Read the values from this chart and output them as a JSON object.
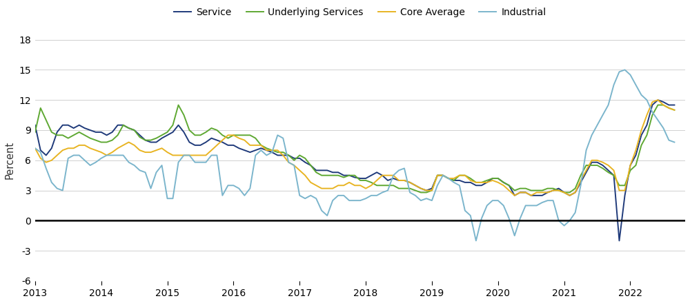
{
  "ylabel": "Percent",
  "xlim": [
    2013.0,
    2022.83
  ],
  "ylim": [
    -6,
    18
  ],
  "yticks": [
    -6,
    -3,
    0,
    3,
    6,
    9,
    12,
    15,
    18
  ],
  "xticks": [
    2013,
    2014,
    2015,
    2016,
    2017,
    2018,
    2019,
    2020,
    2021,
    2022
  ],
  "colors": {
    "Service": "#1f3a7a",
    "Underlying Services": "#5ea832",
    "Core Average": "#e8b422",
    "Industrial": "#7bb5cc"
  },
  "legend_order": [
    "Service",
    "Underlying Services",
    "Core Average",
    "Industrial"
  ],
  "series": {
    "Service": {
      "x": [
        2013.0,
        2013.083,
        2013.167,
        2013.25,
        2013.333,
        2013.417,
        2013.5,
        2013.583,
        2013.667,
        2013.75,
        2013.833,
        2013.917,
        2014.0,
        2014.083,
        2014.167,
        2014.25,
        2014.333,
        2014.417,
        2014.5,
        2014.583,
        2014.667,
        2014.75,
        2014.833,
        2014.917,
        2015.0,
        2015.083,
        2015.167,
        2015.25,
        2015.333,
        2015.417,
        2015.5,
        2015.583,
        2015.667,
        2015.75,
        2015.833,
        2015.917,
        2016.0,
        2016.083,
        2016.167,
        2016.25,
        2016.333,
        2016.417,
        2016.5,
        2016.583,
        2016.667,
        2016.75,
        2016.833,
        2016.917,
        2017.0,
        2017.083,
        2017.167,
        2017.25,
        2017.333,
        2017.417,
        2017.5,
        2017.583,
        2017.667,
        2017.75,
        2017.833,
        2017.917,
        2018.0,
        2018.083,
        2018.167,
        2018.25,
        2018.333,
        2018.417,
        2018.5,
        2018.583,
        2018.667,
        2018.75,
        2018.833,
        2018.917,
        2019.0,
        2019.083,
        2019.167,
        2019.25,
        2019.333,
        2019.417,
        2019.5,
        2019.583,
        2019.667,
        2019.75,
        2019.833,
        2019.917,
        2020.0,
        2020.083,
        2020.167,
        2020.25,
        2020.333,
        2020.417,
        2020.5,
        2020.583,
        2020.667,
        2020.75,
        2020.833,
        2020.917,
        2021.0,
        2021.083,
        2021.167,
        2021.25,
        2021.333,
        2021.417,
        2021.5,
        2021.583,
        2021.667,
        2021.75,
        2021.833,
        2021.917,
        2022.0,
        2022.083,
        2022.167,
        2022.25,
        2022.333,
        2022.417,
        2022.5,
        2022.583,
        2022.667
      ],
      "y": [
        9.5,
        7.0,
        6.5,
        7.2,
        8.8,
        9.5,
        9.5,
        9.2,
        9.5,
        9.2,
        9.0,
        8.8,
        8.8,
        8.5,
        8.8,
        9.5,
        9.5,
        9.2,
        9.0,
        8.5,
        8.0,
        7.8,
        7.8,
        8.2,
        8.5,
        8.8,
        9.5,
        8.8,
        7.8,
        7.5,
        7.5,
        7.8,
        8.2,
        8.0,
        7.8,
        7.5,
        7.5,
        7.2,
        7.0,
        6.8,
        7.0,
        7.2,
        7.0,
        6.8,
        6.5,
        6.5,
        6.5,
        6.2,
        6.2,
        5.8,
        5.5,
        5.0,
        5.0,
        5.0,
        4.8,
        4.8,
        4.5,
        4.5,
        4.3,
        4.2,
        4.2,
        4.5,
        4.8,
        4.5,
        4.0,
        4.2,
        4.0,
        4.0,
        3.8,
        3.5,
        3.2,
        3.0,
        3.2,
        4.5,
        4.5,
        4.2,
        4.0,
        4.0,
        3.8,
        3.8,
        3.5,
        3.5,
        3.8,
        4.2,
        4.2,
        3.8,
        3.5,
        2.5,
        2.8,
        2.8,
        2.5,
        2.5,
        2.5,
        2.8,
        3.0,
        3.2,
        2.8,
        2.5,
        2.8,
        3.8,
        4.8,
        5.8,
        5.8,
        5.5,
        5.0,
        4.5,
        -2.0,
        2.5,
        5.5,
        6.5,
        8.5,
        9.5,
        11.5,
        12.0,
        11.8,
        11.5,
        11.5
      ]
    },
    "Underlying Services": {
      "x": [
        2013.0,
        2013.083,
        2013.167,
        2013.25,
        2013.333,
        2013.417,
        2013.5,
        2013.583,
        2013.667,
        2013.75,
        2013.833,
        2013.917,
        2014.0,
        2014.083,
        2014.167,
        2014.25,
        2014.333,
        2014.417,
        2014.5,
        2014.583,
        2014.667,
        2014.75,
        2014.833,
        2014.917,
        2015.0,
        2015.083,
        2015.167,
        2015.25,
        2015.333,
        2015.417,
        2015.5,
        2015.583,
        2015.667,
        2015.75,
        2015.833,
        2015.917,
        2016.0,
        2016.083,
        2016.167,
        2016.25,
        2016.333,
        2016.417,
        2016.5,
        2016.583,
        2016.667,
        2016.75,
        2016.833,
        2016.917,
        2017.0,
        2017.083,
        2017.167,
        2017.25,
        2017.333,
        2017.417,
        2017.5,
        2017.583,
        2017.667,
        2017.75,
        2017.833,
        2017.917,
        2018.0,
        2018.083,
        2018.167,
        2018.25,
        2018.333,
        2018.417,
        2018.5,
        2018.583,
        2018.667,
        2018.75,
        2018.833,
        2018.917,
        2019.0,
        2019.083,
        2019.167,
        2019.25,
        2019.333,
        2019.417,
        2019.5,
        2019.583,
        2019.667,
        2019.75,
        2019.833,
        2019.917,
        2020.0,
        2020.083,
        2020.167,
        2020.25,
        2020.333,
        2020.417,
        2020.5,
        2020.583,
        2020.667,
        2020.75,
        2020.833,
        2020.917,
        2021.0,
        2021.083,
        2021.167,
        2021.25,
        2021.333,
        2021.417,
        2021.5,
        2021.583,
        2021.667,
        2021.75,
        2021.833,
        2021.917,
        2022.0,
        2022.083,
        2022.167,
        2022.25,
        2022.333,
        2022.417,
        2022.5,
        2022.583,
        2022.667
      ],
      "y": [
        8.8,
        11.2,
        10.0,
        8.8,
        8.5,
        8.5,
        8.2,
        8.5,
        8.8,
        8.5,
        8.2,
        8.0,
        7.8,
        7.8,
        8.0,
        8.5,
        9.5,
        9.2,
        9.0,
        8.3,
        8.0,
        8.0,
        8.2,
        8.5,
        8.8,
        9.5,
        11.5,
        10.5,
        9.0,
        8.5,
        8.5,
        8.8,
        9.2,
        9.0,
        8.5,
        8.2,
        8.5,
        8.5,
        8.5,
        8.5,
        8.2,
        7.5,
        7.2,
        7.0,
        6.8,
        6.8,
        6.5,
        6.0,
        6.5,
        6.2,
        5.5,
        4.8,
        4.5,
        4.5,
        4.5,
        4.5,
        4.3,
        4.5,
        4.5,
        4.0,
        4.0,
        3.8,
        3.5,
        3.5,
        3.5,
        3.5,
        3.2,
        3.2,
        3.2,
        3.0,
        2.8,
        2.8,
        3.0,
        4.5,
        4.5,
        4.2,
        4.0,
        4.5,
        4.5,
        4.2,
        3.8,
        3.8,
        4.0,
        4.2,
        4.2,
        3.8,
        3.5,
        3.0,
        3.2,
        3.2,
        3.0,
        3.0,
        3.0,
        3.2,
        3.2,
        3.0,
        2.8,
        2.8,
        3.2,
        4.5,
        5.5,
        5.5,
        5.5,
        5.2,
        4.8,
        4.5,
        3.5,
        3.5,
        5.0,
        5.5,
        7.5,
        8.5,
        10.5,
        11.5,
        11.5,
        11.2,
        11.0
      ]
    },
    "Core Average": {
      "x": [
        2013.0,
        2013.083,
        2013.167,
        2013.25,
        2013.333,
        2013.417,
        2013.5,
        2013.583,
        2013.667,
        2013.75,
        2013.833,
        2013.917,
        2014.0,
        2014.083,
        2014.167,
        2014.25,
        2014.333,
        2014.417,
        2014.5,
        2014.583,
        2014.667,
        2014.75,
        2014.833,
        2014.917,
        2015.0,
        2015.083,
        2015.167,
        2015.25,
        2015.333,
        2015.417,
        2015.5,
        2015.583,
        2015.667,
        2015.75,
        2015.833,
        2015.917,
        2016.0,
        2016.083,
        2016.167,
        2016.25,
        2016.333,
        2016.417,
        2016.5,
        2016.583,
        2016.667,
        2016.75,
        2016.833,
        2016.917,
        2017.0,
        2017.083,
        2017.167,
        2017.25,
        2017.333,
        2017.417,
        2017.5,
        2017.583,
        2017.667,
        2017.75,
        2017.833,
        2017.917,
        2018.0,
        2018.083,
        2018.167,
        2018.25,
        2018.333,
        2018.417,
        2018.5,
        2018.583,
        2018.667,
        2018.75,
        2018.833,
        2018.917,
        2019.0,
        2019.083,
        2019.167,
        2019.25,
        2019.333,
        2019.417,
        2019.5,
        2019.583,
        2019.667,
        2019.75,
        2019.833,
        2019.917,
        2020.0,
        2020.083,
        2020.167,
        2020.25,
        2020.333,
        2020.417,
        2020.5,
        2020.583,
        2020.667,
        2020.75,
        2020.833,
        2020.917,
        2021.0,
        2021.083,
        2021.167,
        2021.25,
        2021.333,
        2021.417,
        2021.5,
        2021.583,
        2021.667,
        2021.75,
        2021.833,
        2021.917,
        2022.0,
        2022.083,
        2022.167,
        2022.25,
        2022.333,
        2022.417,
        2022.5,
        2022.583,
        2022.667
      ],
      "y": [
        7.2,
        6.2,
        5.8,
        6.0,
        6.5,
        7.0,
        7.2,
        7.2,
        7.5,
        7.5,
        7.2,
        7.0,
        6.8,
        6.5,
        6.8,
        7.2,
        7.5,
        7.8,
        7.5,
        7.0,
        6.8,
        6.8,
        7.0,
        7.2,
        6.8,
        6.5,
        6.5,
        6.5,
        6.5,
        6.5,
        6.5,
        6.5,
        7.0,
        7.5,
        8.0,
        8.5,
        8.5,
        8.2,
        8.0,
        7.5,
        7.5,
        7.5,
        7.0,
        7.0,
        7.0,
        6.5,
        5.8,
        5.5,
        5.0,
        4.5,
        3.8,
        3.5,
        3.2,
        3.2,
        3.2,
        3.5,
        3.5,
        3.8,
        3.5,
        3.5,
        3.2,
        3.5,
        4.0,
        4.5,
        4.5,
        4.5,
        4.0,
        4.0,
        3.8,
        3.5,
        3.2,
        3.0,
        3.0,
        4.5,
        4.5,
        4.2,
        4.2,
        4.5,
        4.5,
        4.0,
        3.8,
        3.8,
        3.8,
        4.0,
        3.8,
        3.5,
        3.0,
        2.5,
        2.8,
        2.8,
        2.5,
        2.8,
        2.8,
        2.8,
        3.0,
        3.0,
        2.8,
        2.5,
        2.8,
        4.0,
        5.0,
        6.0,
        6.0,
        5.8,
        5.5,
        5.0,
        3.0,
        3.0,
        5.5,
        7.0,
        9.0,
        10.5,
        11.8,
        12.0,
        11.5,
        11.2,
        11.0
      ]
    },
    "Industrial": {
      "x": [
        2013.0,
        2013.083,
        2013.167,
        2013.25,
        2013.333,
        2013.417,
        2013.5,
        2013.583,
        2013.667,
        2013.75,
        2013.833,
        2013.917,
        2014.0,
        2014.083,
        2014.167,
        2014.25,
        2014.333,
        2014.417,
        2014.5,
        2014.583,
        2014.667,
        2014.75,
        2014.833,
        2014.917,
        2015.0,
        2015.083,
        2015.167,
        2015.25,
        2015.333,
        2015.417,
        2015.5,
        2015.583,
        2015.667,
        2015.75,
        2015.833,
        2015.917,
        2016.0,
        2016.083,
        2016.167,
        2016.25,
        2016.333,
        2016.417,
        2016.5,
        2016.583,
        2016.667,
        2016.75,
        2016.833,
        2016.917,
        2017.0,
        2017.083,
        2017.167,
        2017.25,
        2017.333,
        2017.417,
        2017.5,
        2017.583,
        2017.667,
        2017.75,
        2017.833,
        2017.917,
        2018.0,
        2018.083,
        2018.167,
        2018.25,
        2018.333,
        2018.417,
        2018.5,
        2018.583,
        2018.667,
        2018.75,
        2018.833,
        2018.917,
        2019.0,
        2019.083,
        2019.167,
        2019.25,
        2019.333,
        2019.417,
        2019.5,
        2019.583,
        2019.667,
        2019.75,
        2019.833,
        2019.917,
        2020.0,
        2020.083,
        2020.167,
        2020.25,
        2020.333,
        2020.417,
        2020.5,
        2020.583,
        2020.667,
        2020.75,
        2020.833,
        2020.917,
        2021.0,
        2021.083,
        2021.167,
        2021.25,
        2021.333,
        2021.417,
        2021.5,
        2021.583,
        2021.667,
        2021.75,
        2021.833,
        2021.917,
        2022.0,
        2022.083,
        2022.167,
        2022.25,
        2022.333,
        2022.417,
        2022.5,
        2022.583,
        2022.667
      ],
      "y": [
        7.2,
        6.8,
        5.2,
        3.8,
        3.2,
        3.0,
        6.2,
        6.5,
        6.5,
        6.0,
        5.5,
        5.8,
        6.2,
        6.5,
        6.5,
        6.5,
        6.5,
        5.8,
        5.5,
        5.0,
        4.8,
        3.2,
        4.8,
        5.5,
        2.2,
        2.2,
        5.8,
        6.5,
        6.5,
        5.8,
        5.8,
        5.8,
        6.5,
        6.5,
        2.5,
        3.5,
        3.5,
        3.2,
        2.5,
        3.2,
        6.5,
        7.0,
        6.5,
        6.8,
        8.5,
        8.2,
        5.8,
        5.5,
        2.5,
        2.2,
        2.5,
        2.2,
        1.0,
        0.5,
        2.0,
        2.5,
        2.5,
        2.0,
        2.0,
        2.0,
        2.2,
        2.5,
        2.5,
        2.8,
        3.0,
        4.5,
        5.0,
        5.2,
        2.8,
        2.5,
        2.0,
        2.2,
        2.0,
        3.5,
        4.5,
        4.2,
        3.8,
        3.5,
        1.0,
        0.5,
        -2.0,
        0.2,
        1.5,
        2.0,
        2.0,
        1.5,
        0.2,
        -1.5,
        0.2,
        1.5,
        1.5,
        1.5,
        1.8,
        2.0,
        2.0,
        0.0,
        -0.5,
        0.0,
        0.8,
        3.5,
        7.0,
        8.5,
        9.5,
        10.5,
        11.5,
        13.5,
        14.8,
        15.0,
        14.5,
        13.5,
        12.5,
        12.0,
        10.8,
        10.0,
        9.2,
        8.0,
        7.8
      ]
    }
  }
}
